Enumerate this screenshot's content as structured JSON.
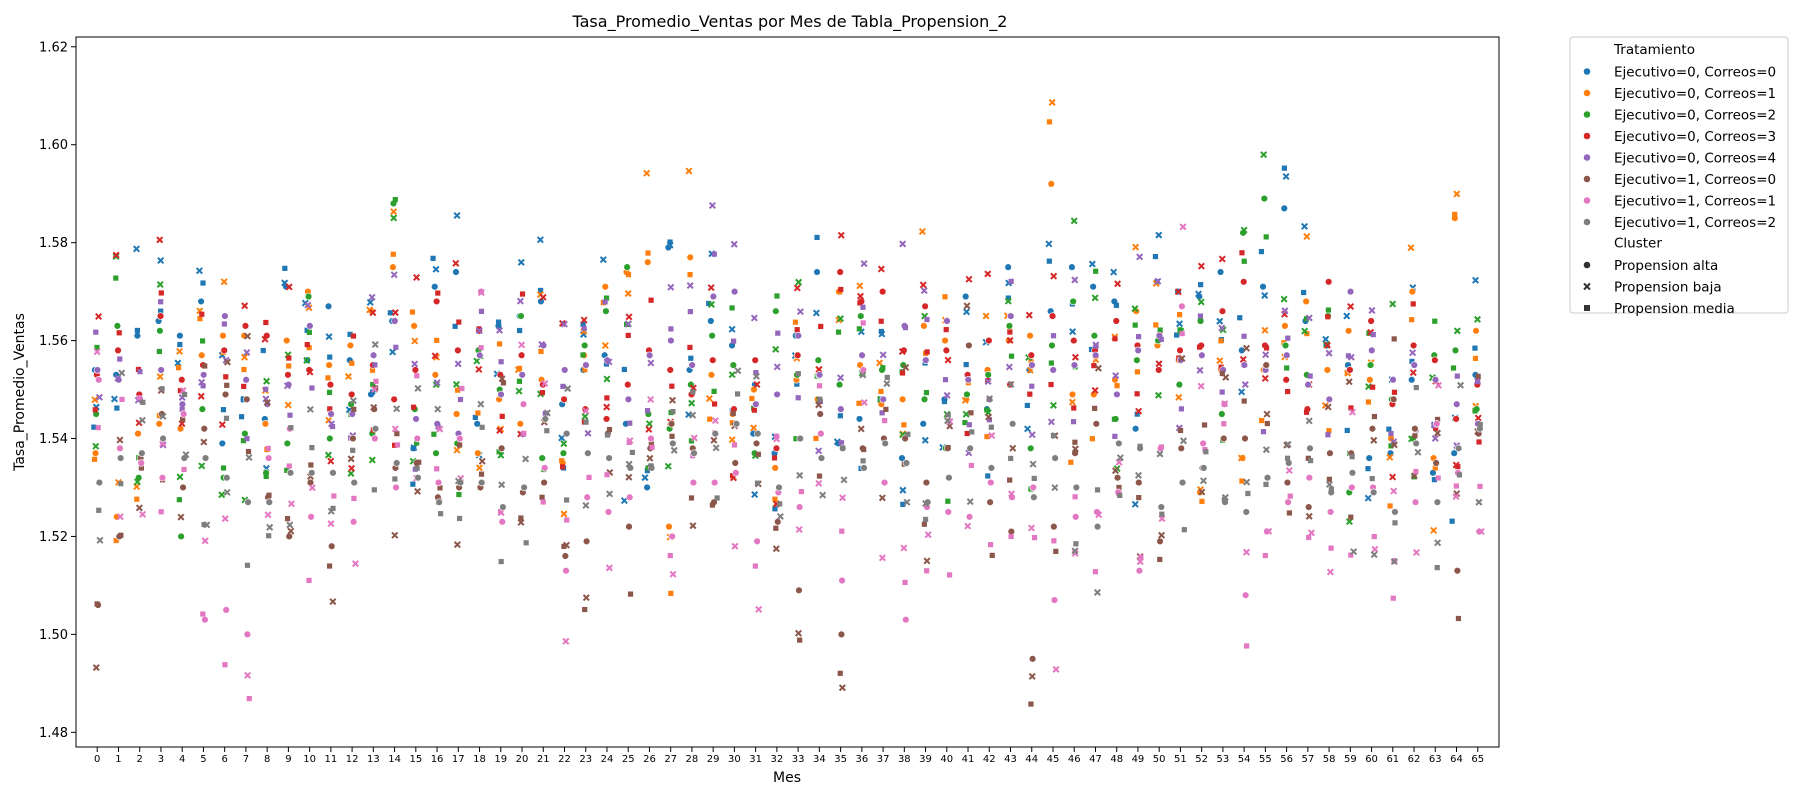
{
  "chart_data": {
    "type": "scatter",
    "title": "Tasa_Promedio_Ventas por Mes de Tabla_Propension_2",
    "xlabel": "Mes",
    "ylabel": "Tasa_Promedio_Ventas",
    "x": [
      0,
      1,
      2,
      3,
      4,
      5,
      6,
      7,
      8,
      9,
      10,
      11,
      12,
      13,
      14,
      15,
      16,
      17,
      18,
      19,
      20,
      21,
      22,
      23,
      24,
      25,
      26,
      27,
      28,
      29,
      30,
      31,
      32,
      33,
      34,
      35,
      36,
      37,
      38,
      39,
      40,
      41,
      42,
      43,
      44,
      45,
      46,
      47,
      48,
      49,
      50,
      51,
      52,
      53,
      54,
      55,
      56,
      57,
      58,
      59,
      60,
      61,
      62,
      63,
      64,
      65
    ],
    "xlim": [
      -1,
      66
    ],
    "ylim": [
      1.477,
      1.622
    ],
    "yticks": [
      1.48,
      1.5,
      1.52,
      1.54,
      1.56,
      1.58,
      1.6,
      1.62
    ],
    "grid": false,
    "legend": {
      "placement": "outside-right",
      "hue_title": "Tratamiento",
      "style_title": "Cluster"
    },
    "series": [
      {
        "name": "Ejecutivo=0, Correos=0",
        "color": "#1f77b4",
        "alta": [
          1.554,
          1.553,
          1.561,
          1.564,
          1.561,
          1.568,
          1.539,
          1.548,
          1.544,
          1.571,
          1.556,
          1.567,
          1.556,
          1.549,
          1.564,
          1.538,
          1.571,
          1.574,
          1.543,
          1.563,
          1.565,
          1.568,
          1.547,
          1.554,
          1.557,
          1.543,
          1.53,
          1.579,
          1.554,
          1.564,
          1.559,
          1.541,
          1.537,
          1.561,
          1.574,
          1.539,
          1.544,
          1.548,
          1.536,
          1.543,
          1.548,
          1.569,
          1.546,
          1.575,
          1.554,
          1.566,
          1.575,
          1.571,
          1.568,
          1.542,
          1.572,
          1.57,
          1.569,
          1.574,
          1.558,
          1.571,
          1.587,
          1.564,
          1.559,
          1.555,
          1.536,
          1.537,
          1.552,
          1.533,
          1.537,
          1.553
        ]
      },
      {
        "name": "Ejecutivo=0, Correos=1",
        "color": "#ff7f0e",
        "alta": [
          1.537,
          1.524,
          1.541,
          1.543,
          1.542,
          1.557,
          1.561,
          1.561,
          1.543,
          1.56,
          1.57,
          1.555,
          1.559,
          1.566,
          1.575,
          1.563,
          1.553,
          1.545,
          1.537,
          1.548,
          1.543,
          1.552,
          1.535,
          1.557,
          1.571,
          1.574,
          1.576,
          1.522,
          1.577,
          1.553,
          1.545,
          1.55,
          1.534,
          1.552,
          1.548,
          1.57,
          1.555,
          1.547,
          1.548,
          1.563,
          1.56,
          1.548,
          1.554,
          1.56,
          1.561,
          1.592,
          1.549,
          1.549,
          1.552,
          1.566,
          1.559,
          1.556,
          1.529,
          1.554,
          1.536,
          1.554,
          1.563,
          1.568,
          1.554,
          1.562,
          1.552,
          1.54,
          1.57,
          1.536,
          1.585,
          1.562
        ]
      },
      {
        "name": "Ejecutivo=0, Correos=2",
        "color": "#2ca02c",
        "alta": [
          1.545,
          1.563,
          1.532,
          1.562,
          1.52,
          1.546,
          1.532,
          1.541,
          1.533,
          1.539,
          1.569,
          1.54,
          1.547,
          1.541,
          1.588,
          1.546,
          1.537,
          1.539,
          1.558,
          1.55,
          1.565,
          1.536,
          1.537,
          1.559,
          1.566,
          1.575,
          1.545,
          1.542,
          1.551,
          1.561,
          1.555,
          1.537,
          1.566,
          1.553,
          1.556,
          1.551,
          1.565,
          1.554,
          1.555,
          1.548,
          1.538,
          1.549,
          1.553,
          1.563,
          1.538,
          1.559,
          1.568,
          1.561,
          1.544,
          1.556,
          1.56,
          1.551,
          1.564,
          1.545,
          1.582,
          1.589,
          1.559,
          1.553,
          1.565,
          1.529,
          1.555,
          1.548,
          1.54,
          1.557,
          1.558,
          1.546
        ]
      },
      {
        "name": "Ejecutivo=0, Correos=3",
        "color": "#d62728",
        "alta": [
          1.553,
          1.558,
          1.549,
          1.565,
          1.552,
          1.555,
          1.558,
          1.563,
          1.561,
          1.553,
          1.554,
          1.551,
          1.549,
          1.555,
          1.548,
          1.554,
          1.568,
          1.558,
          1.562,
          1.553,
          1.557,
          1.551,
          1.548,
          1.546,
          1.544,
          1.551,
          1.558,
          1.554,
          1.549,
          1.556,
          1.546,
          1.556,
          1.538,
          1.557,
          1.553,
          1.574,
          1.568,
          1.57,
          1.558,
          1.567,
          1.558,
          1.553,
          1.56,
          1.551,
          1.557,
          1.565,
          1.56,
          1.558,
          1.564,
          1.559,
          1.554,
          1.558,
          1.559,
          1.566,
          1.572,
          1.559,
          1.552,
          1.546,
          1.572,
          1.554,
          1.564,
          1.547,
          1.559,
          1.556,
          1.544,
          1.551
        ]
      },
      {
        "name": "Ejecutivo=0, Correos=4",
        "color": "#9467bd",
        "alta": [
          1.554,
          1.552,
          1.548,
          1.554,
          1.547,
          1.553,
          1.565,
          1.552,
          1.547,
          1.551,
          1.563,
          1.545,
          1.545,
          1.557,
          1.564,
          1.544,
          1.543,
          1.541,
          1.557,
          1.549,
          1.553,
          1.559,
          1.554,
          1.555,
          1.556,
          1.548,
          1.557,
          1.56,
          1.555,
          1.569,
          1.57,
          1.547,
          1.549,
          1.561,
          1.553,
          1.546,
          1.557,
          1.548,
          1.563,
          1.556,
          1.564,
          1.552,
          1.548,
          1.565,
          1.555,
          1.554,
          1.555,
          1.557,
          1.549,
          1.558,
          1.561,
          1.556,
          1.557,
          1.554,
          1.555,
          1.554,
          1.557,
          1.551,
          1.548,
          1.57,
          1.558,
          1.552,
          1.555,
          1.552,
          1.547,
          1.543
        ]
      },
      {
        "name": "Ejecutivo=1, Correos=0",
        "color": "#8c564b",
        "alta": [
          1.506,
          1.52,
          1.536,
          1.545,
          1.53,
          1.542,
          1.549,
          1.548,
          1.528,
          1.52,
          1.531,
          1.518,
          1.54,
          1.546,
          1.534,
          1.535,
          1.528,
          1.53,
          1.53,
          1.538,
          1.529,
          1.531,
          1.516,
          1.519,
          1.541,
          1.522,
          1.538,
          1.543,
          1.538,
          1.527,
          1.535,
          1.539,
          1.523,
          1.509,
          1.545,
          1.5,
          1.538,
          1.54,
          1.54,
          1.531,
          1.538,
          1.559,
          1.527,
          1.521,
          1.495,
          1.522,
          1.537,
          1.543,
          1.532,
          1.531,
          1.519,
          1.538,
          1.534,
          1.54,
          1.54,
          1.555,
          1.531,
          1.526,
          1.537,
          1.537,
          1.542,
          1.548,
          1.542,
          1.535,
          1.513,
          1.541
        ]
      },
      {
        "name": "Ejecutivo=1, Correos=1",
        "color": "#e377c2",
        "alta": [
          1.552,
          1.538,
          1.535,
          1.532,
          1.545,
          1.503,
          1.505,
          1.5,
          1.536,
          1.542,
          1.524,
          1.533,
          1.523,
          1.54,
          1.53,
          1.54,
          1.531,
          1.54,
          1.57,
          1.523,
          1.547,
          1.534,
          1.513,
          1.528,
          1.525,
          1.528,
          1.54,
          1.52,
          1.531,
          1.531,
          1.533,
          1.519,
          1.529,
          1.526,
          1.541,
          1.511,
          1.554,
          1.531,
          1.503,
          1.526,
          1.525,
          1.524,
          1.531,
          1.528,
          1.53,
          1.507,
          1.524,
          1.525,
          1.529,
          1.513,
          1.538,
          1.567,
          1.539,
          1.547,
          1.508,
          1.521,
          1.527,
          1.532,
          1.525,
          1.53,
          1.53,
          1.515,
          1.527,
          1.543,
          1.533,
          1.521
        ]
      },
      {
        "name": "Ejecutivo=1, Correos=2",
        "color": "#7f7f7f",
        "alta": [
          1.531,
          1.536,
          1.537,
          1.54,
          1.536,
          1.536,
          1.532,
          1.527,
          1.527,
          1.533,
          1.533,
          1.533,
          1.531,
          1.542,
          1.535,
          1.532,
          1.527,
          1.531,
          1.531,
          1.526,
          1.53,
          1.544,
          1.541,
          1.537,
          1.536,
          1.534,
          1.534,
          1.539,
          1.537,
          1.541,
          1.543,
          1.541,
          1.53,
          1.54,
          1.536,
          1.538,
          1.534,
          1.539,
          1.535,
          1.527,
          1.532,
          1.538,
          1.534,
          1.543,
          1.528,
          1.536,
          1.53,
          1.522,
          1.539,
          1.538,
          1.526,
          1.531,
          1.534,
          1.527,
          1.525,
          1.532,
          1.535,
          1.538,
          1.529,
          1.533,
          1.529,
          1.525,
          1.539,
          1.527,
          1.538,
          1.542
        ]
      }
    ]
  },
  "legend_items": {
    "hue_title": "Tratamiento",
    "hue": [
      "Ejecutivo=0, Correos=0",
      "Ejecutivo=0, Correos=1",
      "Ejecutivo=0, Correos=2",
      "Ejecutivo=0, Correos=3",
      "Ejecutivo=0, Correos=4",
      "Ejecutivo=1, Correos=0",
      "Ejecutivo=1, Correos=1",
      "Ejecutivo=1, Correos=2"
    ],
    "style_title": "Cluster",
    "style": [
      {
        "label": "Propension alta",
        "marker": "circle"
      },
      {
        "label": "Propension baja",
        "marker": "x"
      },
      {
        "label": "Propension media",
        "marker": "square"
      }
    ]
  },
  "colors": {
    "s0": "#1f77b4",
    "s1": "#ff7f0e",
    "s2": "#2ca02c",
    "s3": "#d62728",
    "s4": "#9467bd",
    "s5": "#8c564b",
    "s6": "#e377c2",
    "s7": "#7f7f7f"
  }
}
